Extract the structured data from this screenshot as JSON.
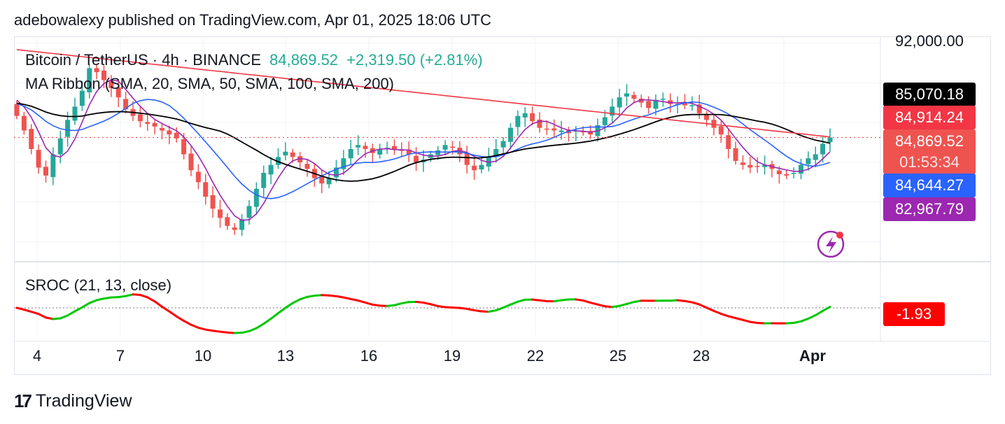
{
  "header": {
    "text": "adebowalexy published on TradingView.com, Apr 01, 2025 18:06 UTC"
  },
  "legend": {
    "symbol": "Bitcoin / TetherUS · 4h · BINANCE",
    "price": "84,869.52",
    "change": "+2,319.50 (+2.81%)",
    "ma_ribbon": "MA Ribbon (SMA, 20, SMA, 50, SMA, 100, SMA, 200)",
    "sroc": "SROC (21, 13, close)"
  },
  "price_axis": {
    "top_label": "92,000.00"
  },
  "badges": {
    "sma200": {
      "label": "85,070.18",
      "color": "#000000"
    },
    "sma100": {
      "label": "84,914.24",
      "color": "#f23645"
    },
    "last": {
      "price": "84,869.52",
      "countdown": "01:53:34",
      "color": "#ef5350"
    },
    "sma50": {
      "label": "84,644.27",
      "color": "#2962ff"
    },
    "sma20": {
      "label": "82,967.79",
      "color": "#9c27b0"
    },
    "sroc": {
      "label": "-1.93",
      "color": "#ff0000"
    }
  },
  "x_ticks": [
    "4",
    "7",
    "10",
    "13",
    "16",
    "19",
    "22",
    "25",
    "28",
    "Apr"
  ],
  "colors": {
    "up": "#26a69a",
    "down": "#ef5350",
    "sma20": "#9c27b0",
    "sma50": "#2962ff",
    "sma100": "#f23645",
    "sma200": "#000000",
    "sroc_up": "#00c805",
    "sroc_down": "#ff0000"
  },
  "footer": {
    "brand": "TradingView",
    "logo_icon": "tradingview-logo-icon"
  },
  "chart_data": {
    "type": "candlestick",
    "title": "Bitcoin / TetherUS · 4h · BINANCE",
    "x_categories": [
      "4",
      "7",
      "10",
      "13",
      "16",
      "19",
      "22",
      "25",
      "28",
      "Apr"
    ],
    "price_range": [
      75500,
      92500
    ],
    "grid": true,
    "closes": [
      86500,
      85400,
      84000,
      82600,
      82000,
      83600,
      84800,
      86200,
      87200,
      88400,
      90100,
      89800,
      89200,
      88600,
      87900,
      87000,
      86500,
      86100,
      85900,
      85700,
      85400,
      85100,
      84800,
      83600,
      82400,
      81500,
      80400,
      79500,
      78800,
      78200,
      77900,
      78700,
      79700,
      81000,
      82200,
      82800,
      83400,
      83800,
      83400,
      83000,
      82500,
      81800,
      81400,
      81800,
      82600,
      83300,
      84000,
      84300,
      84000,
      83700,
      84000,
      84100,
      84000,
      83900,
      83600,
      83000,
      83200,
      83600,
      83900,
      84300,
      84100,
      83600,
      82800,
      82400,
      82800,
      83400,
      84000,
      84600,
      85600,
      86500,
      86700,
      86100,
      85600,
      85500,
      85400,
      85400,
      85200,
      85400,
      85300,
      85100,
      85800,
      86400,
      87200,
      87900,
      88200,
      87800,
      87500,
      87100,
      87700,
      87800,
      87400,
      87400,
      87300,
      87300,
      86700,
      86200,
      85600,
      85100,
      84000,
      83100,
      82800,
      82600,
      82700,
      82800,
      82500,
      82100,
      82000,
      82200,
      82800,
      83300,
      83600,
      84400,
      84870
    ],
    "sma_labels": [
      {
        "name": "SMA 20",
        "value": 82967.79
      },
      {
        "name": "SMA 50",
        "value": 84644.27
      },
      {
        "name": "SMA 100",
        "value": 84914.24
      },
      {
        "name": "SMA 200",
        "value": 85070.18
      }
    ],
    "sroc_last": -1.93
  }
}
